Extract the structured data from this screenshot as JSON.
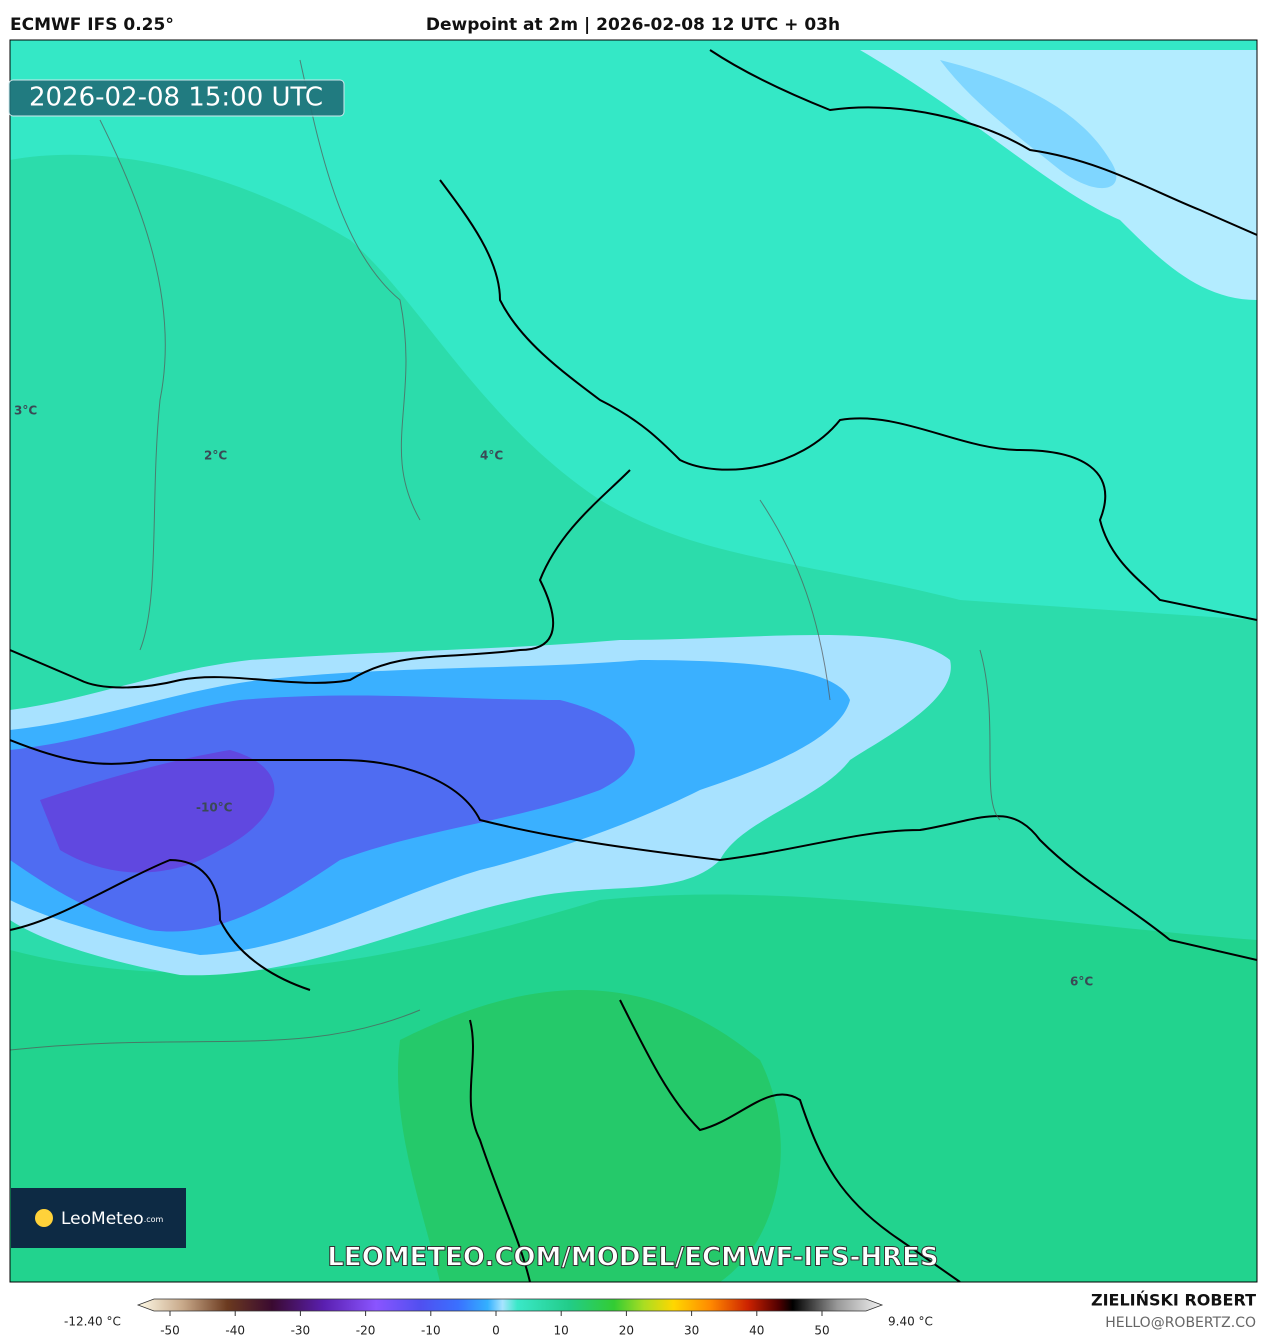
{
  "header": {
    "model": "ECMWF IFS 0.25°",
    "title": "Dewpoint at 2m | 2026-02-08 12 UTC + 03h"
  },
  "map": {
    "valid_time": "2026-02-08 15:00 UTC",
    "contour_labels": [
      "3°C",
      "2°C",
      "4°C",
      "-10°C",
      "6°C"
    ],
    "logo": {
      "brand": "LeoMeteo",
      "suffix": ".com"
    },
    "url": "LEOMETEO.COM/MODEL/ECMWF-IFS-HRES"
  },
  "colorbar": {
    "min_label": "-12.40 °C",
    "max_label": "9.40 °C",
    "ticks": [
      -50,
      -40,
      -30,
      -20,
      -10,
      0,
      10,
      20,
      30,
      40,
      50
    ]
  },
  "footer": {
    "author": "ZIELIŃSKI ROBERT",
    "contact": "HELLO@ROBERTZ.CO"
  }
}
